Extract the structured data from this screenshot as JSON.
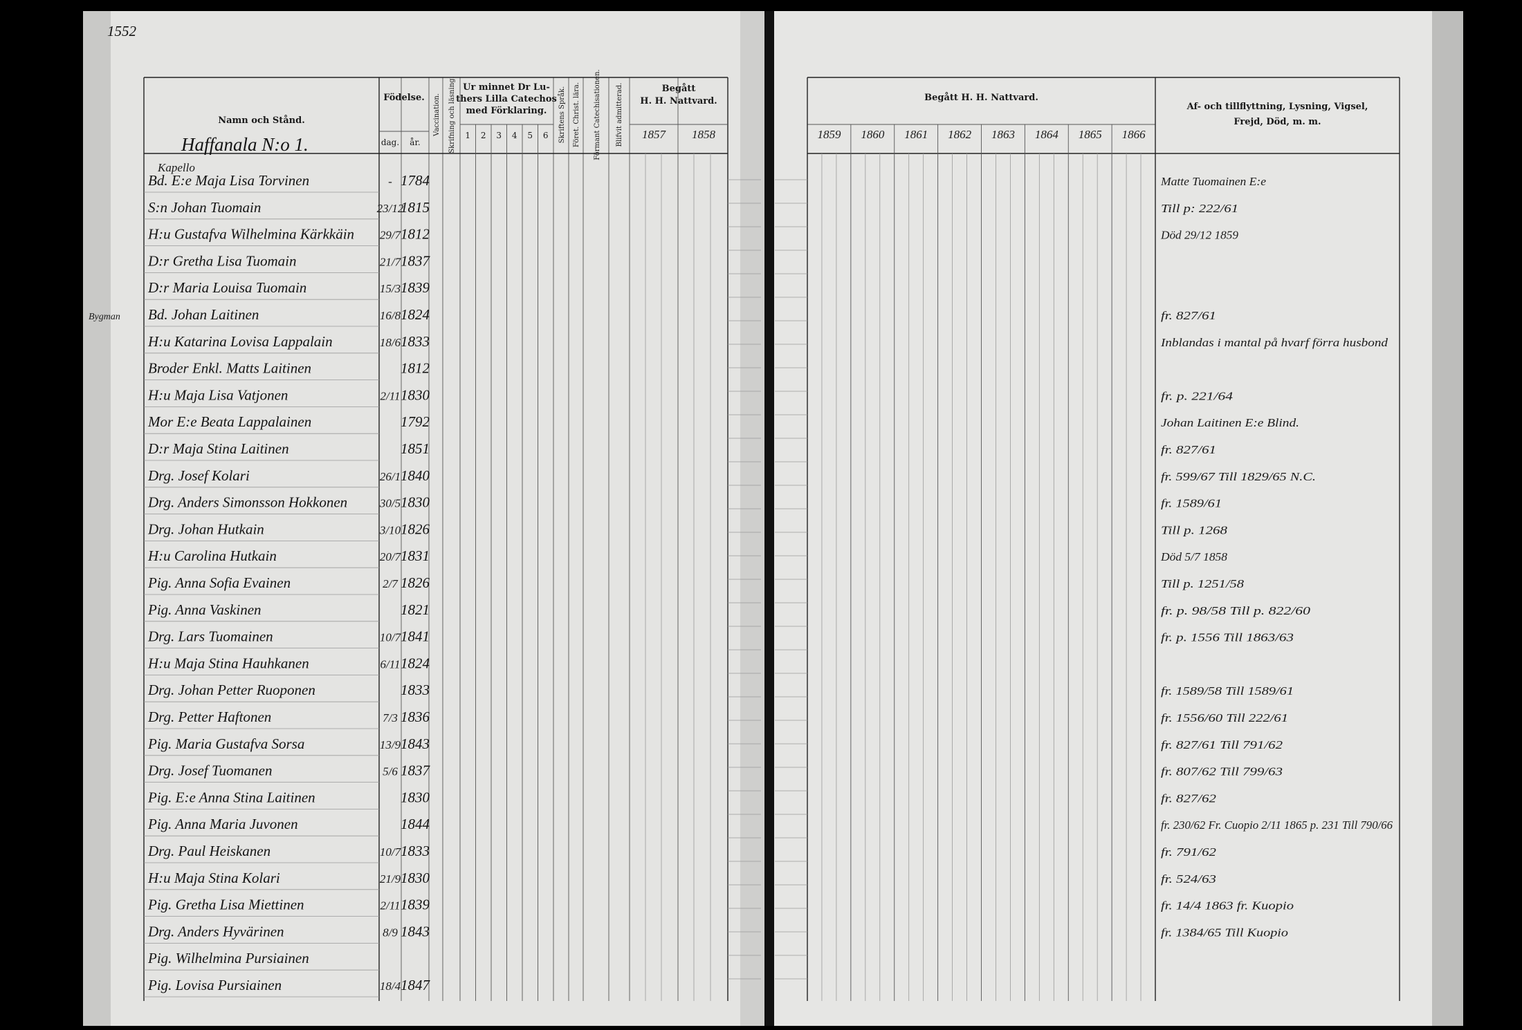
{
  "page_number": "1552",
  "left_header": {
    "name": "Namn och Stånd.",
    "birth": "Födelse.",
    "day": "dag.",
    "year": "år.",
    "vaccination": "Vaccination.",
    "reading": "Skrifning och läsning.",
    "catechism": [
      "Ur minnet Dr Lu-",
      "thers Lilla Catechos",
      "med Förklaring."
    ],
    "catechism_parts": [
      "1",
      "2",
      "3",
      "4",
      "5",
      "6"
    ],
    "scripture": "Skriftens Språk.",
    "doctrine": "Föret. Christ. lära.",
    "catechisation": "Förmant Catechisationen.",
    "admitted": "Blifvit admitterad.",
    "communion": [
      "Begått",
      "H. H. Nattvard."
    ],
    "years": [
      "1857",
      "1858"
    ]
  },
  "right_header": {
    "communion": "Begått H. H. Nattvard.",
    "years": [
      "1859",
      "1860",
      "1861",
      "1862",
      "1863",
      "1864",
      "1865",
      "1866"
    ],
    "remarks": [
      "Af- och tillflyttning, Lysning, Vigsel,",
      "Frejd, Död, m. m."
    ]
  },
  "section": "Haffanala N:o 1.",
  "subsection": "Kapello",
  "rows": [
    {
      "name": "Bd. E:e Maja Lisa Torvinen",
      "day": "-",
      "year": "1784",
      "remark": "Matte Tuomainen E:e"
    },
    {
      "name": "S:n Johan Tuomain",
      "day": "23/12",
      "year": "1815",
      "remark": "Till p: 222/61"
    },
    {
      "name": "H:u Gustafva Wilhelmina Kärkkäin",
      "day": "29/7",
      "year": "1812",
      "remark": "Död 29/12 1859"
    },
    {
      "name": "D:r Gretha Lisa Tuomain",
      "day": "21/7",
      "year": "1837"
    },
    {
      "name": "D:r Maria Louisa Tuomain",
      "day": "15/3",
      "year": "1839"
    },
    {
      "name": "Bd. Johan Laitinen",
      "day": "16/8",
      "year": "1824",
      "remark": "fr. 827/61",
      "note": "Bygman"
    },
    {
      "name": "H:u Katarina Lovisa Lappalain",
      "day": "18/6",
      "year": "1833",
      "remark": "Inblandas i mantal på hvarf förra husbond"
    },
    {
      "name": "Broder Enkl. Matts Laitinen",
      "year": "1812"
    },
    {
      "name": "H:u Maja Lisa Vatjonen",
      "day": "2/11",
      "year": "1830",
      "remark": "fr. p. 221/64"
    },
    {
      "name": "Mor E:e Beata Lappalainen",
      "year": "1792",
      "remark": "Johan Laitinen E:e Blind."
    },
    {
      "name": "D:r Maja Stina Laitinen",
      "year": "1851",
      "remark": "fr. 827/61"
    },
    {
      "name": "Drg. Josef Kolari",
      "day": "26/1",
      "year": "1840",
      "remark": "fr. 599/67 Till 1829/65 N.C."
    },
    {
      "name": "Drg. Anders Simonsson Hokkonen",
      "day": "30/5",
      "year": "1830",
      "remark": "fr. 1589/61"
    },
    {
      "name": "Drg. Johan Hutkain",
      "day": "3/10",
      "year": "1826",
      "remark": "Till p. 1268"
    },
    {
      "name": "H:u Carolina Hutkain",
      "day": "20/7",
      "year": "1831",
      "remark": "Död 5/7 1858"
    },
    {
      "name": "Pig. Anna Sofia Evainen",
      "day": "2/7",
      "year": "1826",
      "remark": "Till p. 1251/58"
    },
    {
      "name": "Pig. Anna Vaskinen",
      "year": "1821",
      "remark": "fr. p. 98/58 Till p. 822/60"
    },
    {
      "name": "Drg. Lars Tuomainen",
      "day": "10/7",
      "year": "1841",
      "remark": "fr. p. 1556 Till 1863/63"
    },
    {
      "name": "H:u Maja Stina Hauhkanen",
      "day": "6/11",
      "year": "1824"
    },
    {
      "name": "Drg. Johan Petter Ruoponen",
      "year": "1833",
      "remark": "fr. 1589/58 Till 1589/61"
    },
    {
      "name": "Drg. Petter Haftonen",
      "day": "7/3",
      "year": "1836",
      "remark": "fr. 1556/60 Till 222/61"
    },
    {
      "name": "Pig. Maria Gustafva Sorsa",
      "day": "13/9",
      "year": "1843",
      "remark": "fr. 827/61 Till 791/62"
    },
    {
      "name": "Drg. Josef Tuomanen",
      "day": "5/6",
      "year": "1837",
      "remark": "fr. 807/62 Till 799/63"
    },
    {
      "name": "Pig. E:e Anna Stina Laitinen",
      "year": "1830",
      "remark": "fr. 827/62"
    },
    {
      "name": "Pig. Anna Maria Juvonen",
      "year": "1844",
      "remark": "fr. 230/62 Fr. Cuopio 2/11 1865 p. 231 Till 790/66"
    },
    {
      "name": "Drg. Paul Heiskanen",
      "day": "10/7",
      "year": "1833",
      "remark": "fr. 791/62"
    },
    {
      "name": "H:u Maja Stina Kolari",
      "day": "21/9",
      "year": "1830",
      "remark": "fr. 524/63"
    },
    {
      "name": "Pig. Gretha Lisa Miettinen",
      "day": "2/11",
      "year": "1839",
      "remark": "fr. 14/4 1863 fr. Kuopio"
    },
    {
      "name": "Drg. Anders Hyvärinen",
      "day": "8/9",
      "year": "1843",
      "remark": "fr. 1384/65 Till Kuopio"
    },
    {
      "name": "Pig. Wilhelmina Pursiainen"
    },
    {
      "name": "Pig. Lovisa Pursiainen",
      "day": "18/4",
      "year": "1847"
    }
  ]
}
